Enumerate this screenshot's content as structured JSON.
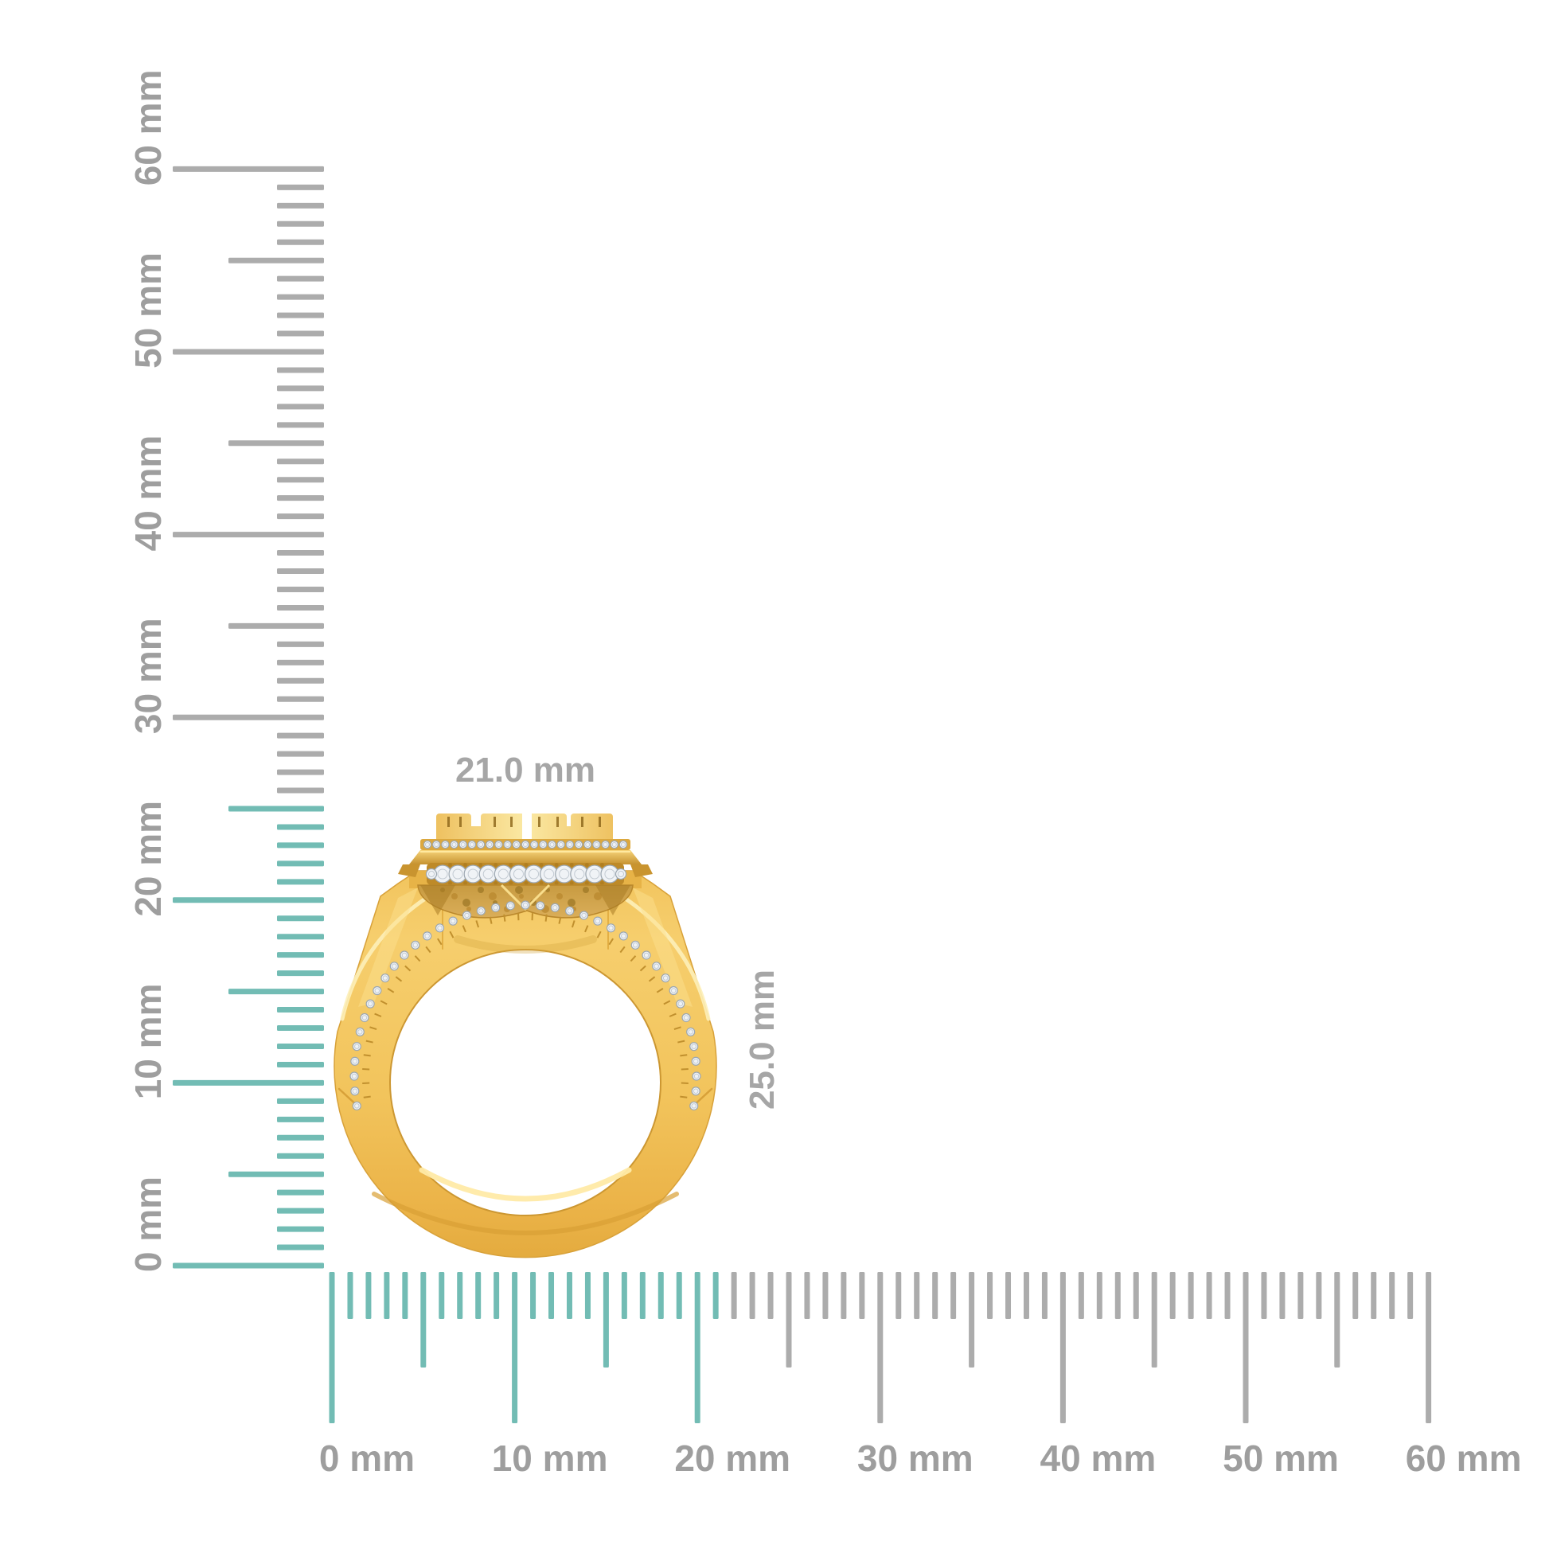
{
  "figure": {
    "kind": "jewelry-dimension-diagram",
    "subject": "gold-diamond-ring-side-profile"
  },
  "dimensions": {
    "width_label": "21.0 mm",
    "height_label": "25.0 mm",
    "width_mm": 21.0,
    "height_mm": 25.0
  },
  "rulers": {
    "unit": "mm",
    "vertical": {
      "min_mm": 0,
      "max_mm": 60,
      "major_step_mm": 10,
      "medium_step_mm": 5,
      "minor_step_mm": 1,
      "labels": [
        "0 mm",
        "10 mm",
        "20 mm",
        "30 mm",
        "40 mm",
        "50 mm",
        "60 mm"
      ],
      "highlight_extent_mm": 25
    },
    "horizontal": {
      "min_mm": 0,
      "max_mm": 60,
      "major_step_mm": 10,
      "medium_step_mm": 5,
      "minor_step_mm": 1,
      "labels": [
        "0 mm",
        "10 mm",
        "20 mm",
        "30 mm",
        "40 mm",
        "50 mm",
        "60 mm"
      ],
      "highlight_extent_mm": 21
    }
  },
  "colors": {
    "background": "#ffffff",
    "highlight_tick": "#72bcb4",
    "tick": "#acacac",
    "ruler_label": "#9e9e9e",
    "dimension_label": "#a6a6a6",
    "gold_light": "#fbe9a4",
    "gold_mid": "#f3c75f",
    "gold_dark": "#ce9733",
    "diamond": "#f0f3f6",
    "diamond_edge": "#9ca7b1"
  }
}
